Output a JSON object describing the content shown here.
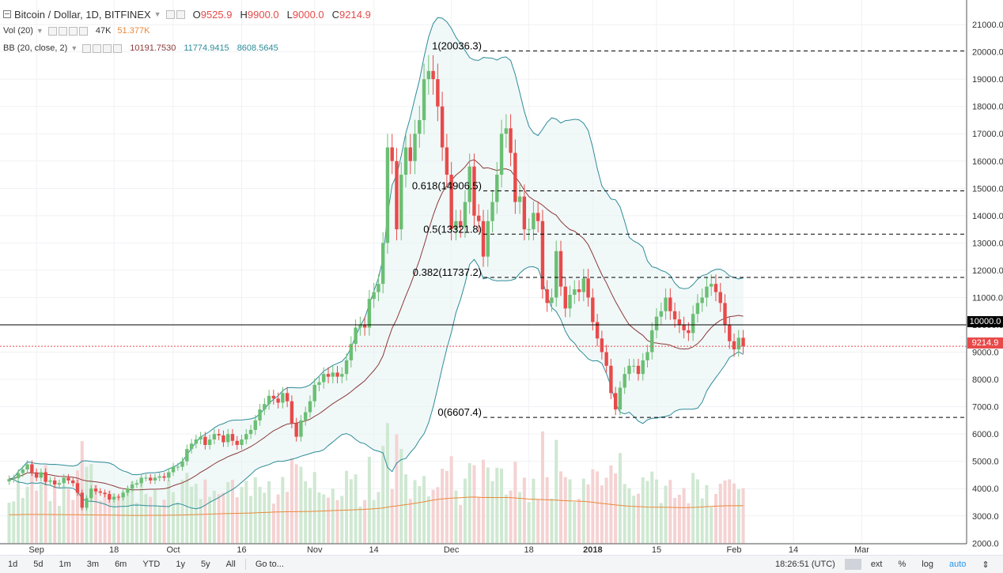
{
  "header": {
    "symbol": "Bitcoin / Dollar, 1D, BITFINEX",
    "open_label": "O",
    "open": "9525.9",
    "high_label": "H",
    "high": "9900.0",
    "low_label": "L",
    "low": "9000.0",
    "close_label": "C",
    "close": "9214.9"
  },
  "volume_legend": {
    "label": "Vol (20)",
    "value": "47K",
    "ma": "51.377K"
  },
  "bb_legend": {
    "label": "BB (20, close, 2)",
    "basis": "10191.7530",
    "upper": "11774.9415",
    "lower": "8608.5645"
  },
  "price_boxes": {
    "line": "10000.0",
    "current": "9214.9"
  },
  "bottom_bar": {
    "timeframes": [
      "1d",
      "5d",
      "1m",
      "3m",
      "6m",
      "YTD",
      "1y",
      "5y",
      "All"
    ],
    "goto": "Go to...",
    "time": "18:26:51 (UTC)",
    "right": [
      "ext",
      "%",
      "log"
    ],
    "auto": "auto"
  },
  "colors": {
    "up": "#6bbf73",
    "down": "#e84a4a",
    "bb_band": "#2e8c99",
    "bb_basis": "#8b3a3a",
    "vol_ma": "#e9893a",
    "fib": "#000000"
  },
  "chart_data": {
    "type": "candlestick",
    "title": "Bitcoin / Dollar, 1D, BITFINEX",
    "y_ticks": [
      2000,
      3000,
      4000,
      5000,
      6000,
      7000,
      8000,
      9000,
      10000,
      11000,
      12000,
      13000,
      14000,
      15000,
      16000,
      17000,
      18000,
      19000,
      20000,
      21000
    ],
    "ylim": [
      1980,
      21900
    ],
    "x_ticks": [
      {
        "label": "Sep",
        "date": "2017-09-01"
      },
      {
        "label": "18",
        "date": "2017-09-18"
      },
      {
        "label": "Oct",
        "date": "2017-10-01"
      },
      {
        "label": "16",
        "date": "2017-10-16"
      },
      {
        "label": "Nov",
        "date": "2017-11-01"
      },
      {
        "label": "14",
        "date": "2017-11-14"
      },
      {
        "label": "Dec",
        "date": "2017-12-01"
      },
      {
        "label": "18",
        "date": "2017-12-18"
      },
      {
        "label": "2018",
        "date": "2018-01-01"
      },
      {
        "label": "15",
        "date": "2018-01-15"
      },
      {
        "label": "Feb",
        "date": "2018-02-01"
      },
      {
        "label": "14",
        "date": "2018-02-14"
      },
      {
        "label": "Mar",
        "date": "2018-03-01"
      }
    ],
    "xlim": [
      "2017-08-24",
      "2018-03-24"
    ],
    "first_date": "2017-08-26",
    "closes": [
      4350,
      4380,
      4570,
      4700,
      4890,
      4600,
      4400,
      4600,
      4250,
      4300,
      4150,
      4200,
      4400,
      4300,
      4200,
      3850,
      3300,
      3650,
      4000,
      3900,
      3850,
      3800,
      3600,
      3700,
      3680,
      3850,
      4000,
      4150,
      4200,
      4400,
      4400,
      4300,
      4400,
      4450,
      4400,
      4600,
      4800,
      4800,
      5000,
      5450,
      5650,
      5800,
      5900,
      5600,
      5800,
      6000,
      5950,
      5700,
      6000,
      5750,
      5600,
      5800,
      6000,
      6150,
      6500,
      6900,
      7100,
      7400,
      7300,
      7150,
      7500,
      7200,
      6400,
      5900,
      6500,
      6800,
      7200,
      7800,
      7900,
      8200,
      8100,
      8250,
      8100,
      8200,
      8700,
      9300,
      9900,
      10000,
      9900,
      10950,
      11200,
      11500,
      13000,
      16500,
      16000,
      13500,
      15500,
      16500,
      16000,
      17000,
      17500,
      19000,
      19300,
      19000,
      18000,
      16500,
      15500,
      13500,
      13800,
      13600,
      14500,
      15800,
      14000,
      13800,
      12500,
      13800,
      14500,
      15500,
      17000,
      17200,
      16300,
      14500,
      14700,
      13500,
      13500,
      14100,
      13800,
      11300,
      10800,
      11000,
      12700,
      11400,
      10600,
      11100,
      11300,
      11200,
      11700,
      11000,
      10100,
      9500,
      9000,
      8500,
      7500,
      6900,
      7700,
      8200,
      8500,
      8500,
      8200,
      8700,
      9000,
      9800,
      10300,
      10500,
      11000,
      10500,
      10200,
      10000,
      9800,
      9700,
      10400,
      10800,
      11000,
      11400,
      11500,
      11200,
      10800,
      10000,
      9400,
      9100,
      9525.9,
      9214.9
    ],
    "volume": {
      "unit": "raw_scaled",
      "note_ylim": [
        2000,
        7000
      ]
    },
    "bollinger": {
      "length": 20,
      "source": "close",
      "mult": 2,
      "basis": 10191.753,
      "upper": 11774.9415,
      "lower": 8608.5645
    },
    "fibonacci": [
      {
        "label": "1(20036.3)",
        "value": 20036.3
      },
      {
        "label": "0.618(14906.5)",
        "value": 14906.5
      },
      {
        "label": "0.5(13321.8)",
        "value": 13321.8
      },
      {
        "label": "0.382(11737.2)",
        "value": 11737.2
      },
      {
        "label": "0(6607.4)",
        "value": 6607.4
      }
    ],
    "horizontal_line": 10000,
    "current_price": 9214.9
  }
}
